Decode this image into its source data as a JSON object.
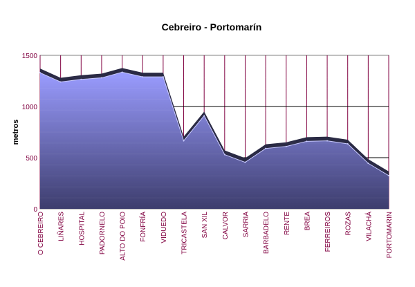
{
  "chart_data": {
    "type": "area",
    "title": "Cebreiro - Portomarín",
    "xlabel": "",
    "ylabel": "metros",
    "ylim": [
      0,
      1500
    ],
    "yticks": [
      0,
      500,
      1000,
      1500
    ],
    "categories": [
      "O CEBREIRO",
      "LIÑARES",
      "HOSPITAL",
      "PADORNELO",
      "ALTO DO POIO",
      "FONFRÍA",
      "VIDUEDO",
      "TRICASTELA",
      "SAN XIL",
      "CALVOR",
      "SARRIA",
      "BARBADELO",
      "RENTE",
      "BREA",
      "FERREIROS",
      "ROZAS",
      "VILACHÁ",
      "PORTOMARIN"
    ],
    "values": [
      1330,
      1240,
      1265,
      1280,
      1335,
      1290,
      1290,
      665,
      910,
      530,
      455,
      590,
      610,
      660,
      665,
      635,
      445,
      325
    ],
    "grid": true,
    "legend": "none",
    "colors": {
      "area_top": "#9a9cff",
      "area_bottom": "#3d3d6d",
      "ridge": "#2a2a44",
      "axis": "#808080",
      "grid_vertical": "#800040",
      "grid_horizontal": "#000000",
      "tick_label": "#800040"
    }
  }
}
